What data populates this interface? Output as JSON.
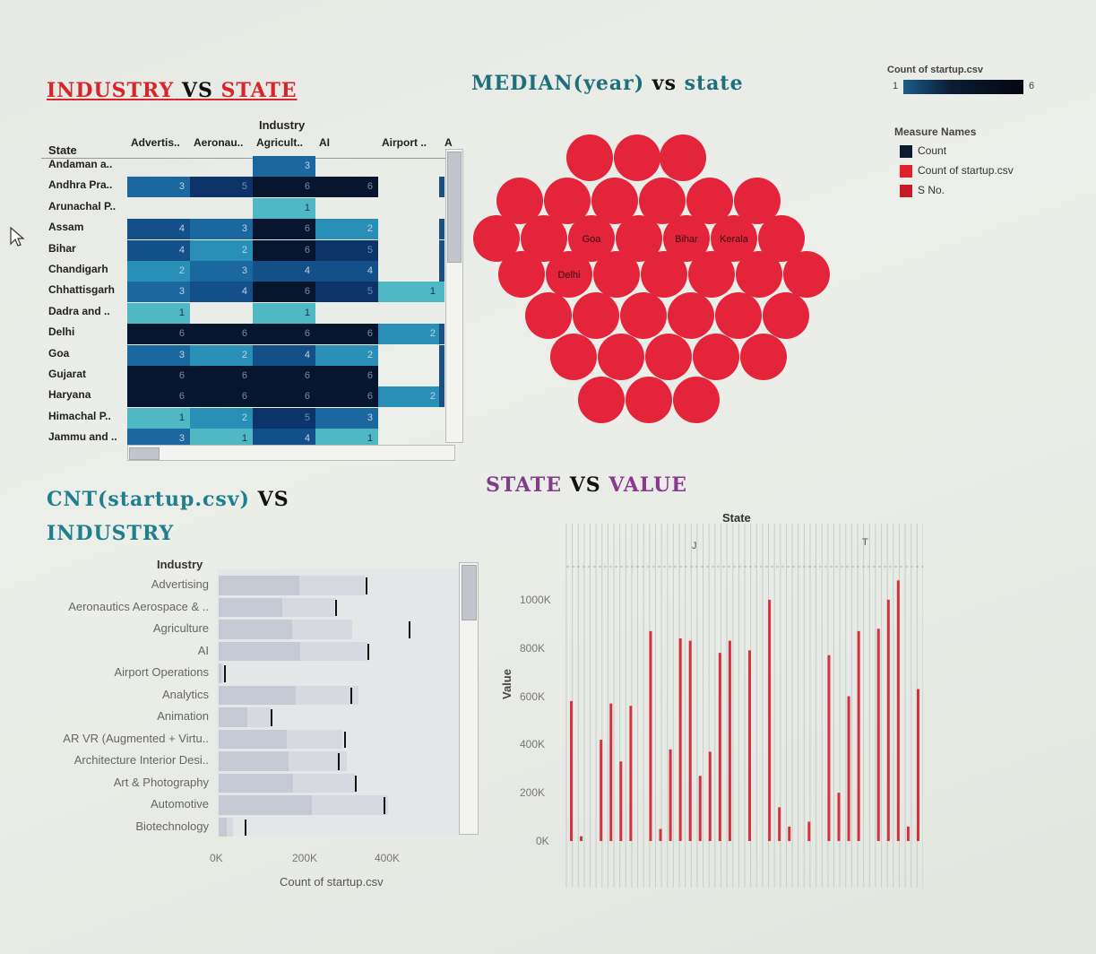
{
  "titles": {
    "industry_vs_state_a": "INDUSTRY",
    "industry_vs_state_vs": " VS ",
    "industry_vs_state_b": "STATE",
    "median_a": "MEDIAN(year)",
    "median_vs": " vs ",
    "median_b": "state",
    "cnt_a": "CNT(startup.csv)",
    "cnt_vs": " VS",
    "cnt_b": "INDUSTRY",
    "state_value_a": "STATE",
    "state_value_vs": " VS ",
    "state_value_b": "VALUE"
  },
  "color_legend": {
    "title": "Count of startup.csv",
    "min": "1",
    "max": "6",
    "from": "#0a2a4a",
    "to": "#050a15"
  },
  "measure_legend": {
    "title": "Measure Names",
    "items": [
      {
        "label": "Count",
        "color": "#0b1a2e"
      },
      {
        "label": "Count of startup.csv",
        "color": "#e0202f"
      },
      {
        "label": "S No.",
        "color": "#c61c28"
      }
    ]
  },
  "chart_data": [
    {
      "type": "heatmap",
      "title": "INDUSTRY VS STATE",
      "column_header": "Industry",
      "row_header": "State",
      "columns": [
        "Advertis..",
        "Aeronau..",
        "Agricult..",
        "AI",
        "Airport ..",
        "A"
      ],
      "rows": [
        "Andaman a..",
        "Andhra Pra..",
        "Arunachal P..",
        "Assam",
        "Bihar",
        "Chandigarh",
        "Chhattisgarh",
        "Dadra and ..",
        "Delhi",
        "Goa",
        "Gujarat",
        "Haryana",
        "Himachal P..",
        "Jammu and .."
      ],
      "values": [
        [
          null,
          null,
          3,
          null,
          null,
          null
        ],
        [
          3,
          5,
          6,
          6,
          null,
          null
        ],
        [
          null,
          null,
          1,
          null,
          null,
          null
        ],
        [
          4,
          3,
          6,
          2,
          null,
          null
        ],
        [
          4,
          2,
          6,
          5,
          null,
          null
        ],
        [
          2,
          3,
          4,
          4,
          null,
          null
        ],
        [
          3,
          4,
          6,
          5,
          1,
          null
        ],
        [
          1,
          null,
          1,
          null,
          null,
          null
        ],
        [
          6,
          6,
          6,
          6,
          2,
          null
        ],
        [
          3,
          2,
          4,
          2,
          null,
          null
        ],
        [
          6,
          6,
          6,
          6,
          null,
          null
        ],
        [
          6,
          6,
          6,
          6,
          2,
          null
        ],
        [
          1,
          2,
          5,
          3,
          null,
          null
        ],
        [
          3,
          1,
          4,
          1,
          null,
          null
        ]
      ]
    },
    {
      "type": "scatter",
      "title": "MEDIAN(year) vs state",
      "labeled_bubbles": [
        "Goa",
        "Bihar",
        "Kerala",
        "Delhi"
      ],
      "bubble_count": 38
    },
    {
      "type": "bar",
      "title": "CNT(startup.csv) VS INDUSTRY",
      "orientation": "horizontal",
      "ylabel": "Industry",
      "xlabel": "Count of startup.csv",
      "x_ticks": [
        "0K",
        "200K",
        "400K"
      ],
      "xlim": [
        0,
        600000
      ],
      "categories": [
        "Advertising",
        "Aeronautics Aerospace & ..",
        "Agriculture",
        "AI",
        "Airport Operations",
        "Analytics",
        "Animation",
        "AR VR (Augmented + Virtu..",
        "Architecture Interior Desi..",
        "Art & Photography",
        "Automotive",
        "Biotechnology"
      ],
      "values": [
        355000,
        280000,
        325000,
        360000,
        10000,
        340000,
        125000,
        300000,
        310000,
        330000,
        410000,
        35000
      ],
      "reference_lines": [
        356000,
        282000,
        460000,
        360000,
        12000,
        320000,
        125000,
        305000,
        290000,
        330000,
        400000,
        62000
      ]
    },
    {
      "type": "bar",
      "title": "STATE VS VALUE",
      "header": "State",
      "ylabel": "Value",
      "y_ticks": [
        "0K",
        "200K",
        "400K",
        "600K",
        "800K",
        "1000K"
      ],
      "ylim": [
        0,
        1100000
      ],
      "top_markers": [
        "J",
        "T"
      ],
      "values": [
        580000,
        20000,
        0,
        420000,
        570000,
        330000,
        560000,
        0,
        870000,
        50000,
        380000,
        840000,
        830000,
        270000,
        370000,
        780000,
        830000,
        0,
        790000,
        0,
        1000000,
        140000,
        60000,
        0,
        80000,
        0,
        770000,
        200000,
        600000,
        870000,
        0,
        880000,
        1000000,
        1080000,
        60000,
        630000
      ]
    }
  ]
}
